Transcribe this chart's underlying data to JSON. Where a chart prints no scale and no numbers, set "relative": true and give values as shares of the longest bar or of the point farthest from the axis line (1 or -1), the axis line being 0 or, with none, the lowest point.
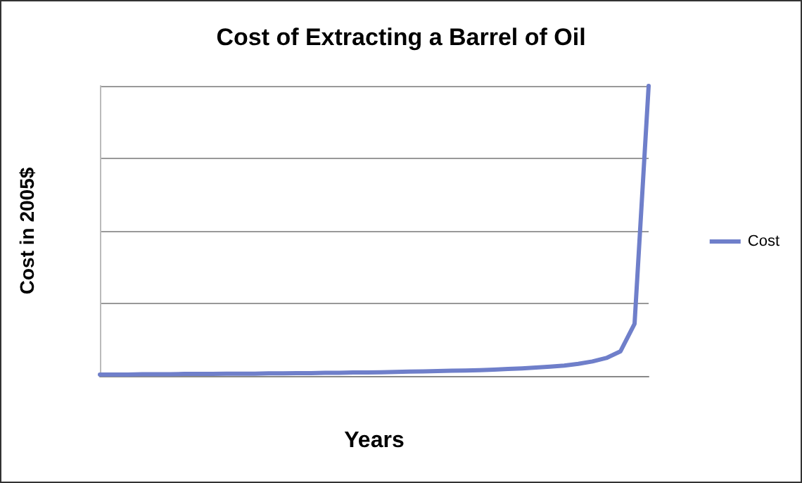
{
  "chart_data": {
    "type": "line",
    "title": "Cost of Extracting a Barrel of Oil",
    "xlabel": "Years",
    "ylabel": "Cost in 2005$",
    "relative": true,
    "grid": "y",
    "legend": "right",
    "marker": "none",
    "line_style": "solid",
    "categories": [
      null,
      null,
      null,
      null,
      null,
      null,
      null,
      null,
      null,
      null,
      null,
      null,
      null,
      null,
      null,
      null,
      null,
      null,
      null,
      null,
      null,
      null,
      null,
      null,
      null,
      null,
      null,
      null,
      null,
      null,
      null,
      null,
      null,
      null,
      null,
      null,
      null,
      null,
      null,
      null
    ],
    "series": [
      {
        "name": "Cost",
        "color": "#6f7fca",
        "values": [
          0.005,
          0.005,
          0.005,
          0.006,
          0.006,
          0.006,
          0.007,
          0.007,
          0.007,
          0.008,
          0.008,
          0.008,
          0.009,
          0.009,
          0.01,
          0.01,
          0.011,
          0.011,
          0.012,
          0.012,
          0.013,
          0.014,
          0.015,
          0.016,
          0.017,
          0.018,
          0.019,
          0.02,
          0.022,
          0.024,
          0.026,
          0.029,
          0.032,
          0.036,
          0.042,
          0.05,
          0.062,
          0.085,
          0.18,
          1
        ]
      }
    ]
  }
}
